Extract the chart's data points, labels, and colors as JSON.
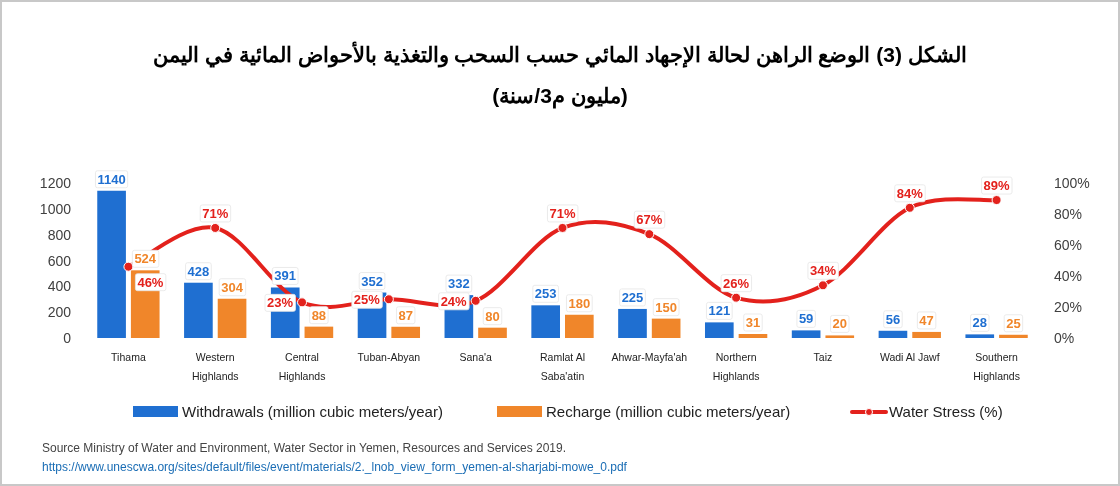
{
  "chart_data": {
    "type": "bar",
    "title": "الشكل (3) الوضع الراهن لحالة الإجهاد المائي حسب السحب والتغذية بالأحواض المائية في اليمن",
    "subtitle": "(مليون م3/سنة)",
    "categories": [
      "Tihama",
      "Western Highlands",
      "Central Highlands",
      "Tuban-Abyan",
      "Sana'a",
      "Ramlat Al Saba'atin",
      "Ahwar-Mayfa'ah",
      "Northern Highlands",
      "Taiz",
      "Wadi Al Jawf",
      "Southern Highlands"
    ],
    "series": [
      {
        "name": "Withdrawals (million cubic meters/year)",
        "color": "#1f6fd1",
        "values": [
          1140,
          428,
          391,
          352,
          332,
          253,
          225,
          121,
          59,
          56,
          28
        ]
      },
      {
        "name": "Recharge (million cubic meters/year)",
        "color": "#f0862a",
        "values": [
          524,
          304,
          88,
          87,
          80,
          180,
          150,
          31,
          20,
          47,
          25
        ]
      },
      {
        "name": "Water Stress (%)",
        "type": "line",
        "axis": "y2",
        "color": "#e3211c",
        "marker": "circle",
        "line_style": "solid",
        "values": [
          46,
          71,
          23,
          25,
          24,
          71,
          67,
          26,
          34,
          84,
          89
        ],
        "value_labels": [
          "46%",
          "71%",
          "23%",
          "25%",
          "24%",
          "71%",
          "67%",
          "26%",
          "34%",
          "84%",
          "89%"
        ]
      }
    ],
    "ylim": [
      0,
      1200
    ],
    "yticks": [
      0,
      200,
      400,
      600,
      800,
      1000,
      1200
    ],
    "y2lim": [
      0,
      100
    ],
    "y2ticks": [
      {
        "value": 0,
        "label": "0%"
      },
      {
        "value": 20,
        "label": "20%"
      },
      {
        "value": 40,
        "label": "40%"
      },
      {
        "value": 60,
        "label": "60%"
      },
      {
        "value": 80,
        "label": "80%"
      },
      {
        "value": 100,
        "label": "100%"
      }
    ],
    "data_labels": true,
    "legend": "bottom",
    "grid": false,
    "annotations": [
      "Source  Ministry of Water and Environment, Water Sector in Yemen, Resources and Services 2019.",
      "https://www.unescwa.org/sites/default/files/event/materials/2._lnob_view_form_yemen-al-sharjabi-mowe_0.pdf"
    ]
  }
}
